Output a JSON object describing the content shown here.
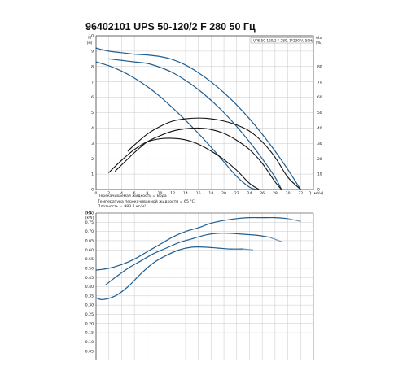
{
  "title": "96402101 UPS 50-120/2 F 280 50 Гц",
  "notes": [
    "Перекачиваемая жидкость = Вода",
    "Температура перекачиваемой жидкости = 65 °C",
    "Плотность = 983.2 кг/м³"
  ],
  "colors": {
    "blue": "#1f5e91",
    "lightblue": "#6f95b8",
    "black": "#111111",
    "grid": "#c8c8c8"
  },
  "chart_data": [
    {
      "type": "line",
      "legend_text": "UPS 50-120/2 F 280, 1*230 V, 50Hz",
      "xlabel": "Q [м³/ч]",
      "ylabel": "H",
      "ylabel_unit": "[м]",
      "y2label": "eta",
      "y2label_unit": "[%]",
      "xlim": [
        0,
        34
      ],
      "ylim": [
        0,
        10
      ],
      "y2lim": [
        0,
        100
      ],
      "x_ticks": [
        0,
        2,
        4,
        6,
        8,
        10,
        12,
        14,
        16,
        18,
        20,
        22,
        24,
        26,
        28,
        30,
        32
      ],
      "y_ticks": [
        0,
        1,
        2,
        3,
        4,
        5,
        6,
        7,
        8,
        9,
        10
      ],
      "y2_ticks": [
        0,
        10,
        20,
        30,
        40,
        50,
        60,
        70,
        80
      ],
      "grid": true,
      "series": [
        {
          "group": "head",
          "color": "blue",
          "x": [
            0,
            2,
            4,
            6,
            8,
            10,
            12,
            14,
            16,
            18,
            20,
            22,
            24,
            26,
            28,
            30,
            32
          ],
          "y": [
            9.2,
            9.0,
            8.9,
            8.8,
            8.75,
            8.65,
            8.45,
            8.1,
            7.6,
            7.0,
            6.3,
            5.5,
            4.6,
            3.6,
            2.5,
            1.3,
            0.0
          ]
        },
        {
          "group": "head",
          "color": "blue",
          "x": [
            2,
            4,
            6,
            8,
            10,
            12,
            14,
            16,
            18,
            20,
            22,
            24,
            26,
            28,
            29
          ],
          "y": [
            8.5,
            8.4,
            8.3,
            8.2,
            7.95,
            7.6,
            7.1,
            6.5,
            5.8,
            5.0,
            4.1,
            3.1,
            2.0,
            0.8,
            0.0
          ]
        },
        {
          "group": "head",
          "color": "blue",
          "x": [
            0,
            2,
            4,
            6,
            8,
            10,
            12,
            14,
            16,
            18,
            20,
            22,
            24,
            25.2
          ],
          "y": [
            8.3,
            8.05,
            7.7,
            7.25,
            6.7,
            6.05,
            5.3,
            4.5,
            3.65,
            2.75,
            1.8,
            0.85,
            0.15,
            0.0
          ]
        },
        {
          "group": "eta",
          "color": "black",
          "x": [
            5,
            6,
            8,
            10,
            12,
            14,
            16,
            18,
            20,
            22,
            24,
            26,
            28,
            30,
            32
          ],
          "y": [
            25,
            29,
            36,
            41,
            44.5,
            46,
            46.5,
            46,
            44.5,
            42,
            38,
            31,
            21,
            8,
            0
          ]
        },
        {
          "group": "eta",
          "color": "black",
          "x": [
            3,
            4,
            6,
            8,
            10,
            12,
            14,
            16,
            18,
            20,
            22,
            24,
            26,
            28,
            29
          ],
          "y": [
            12,
            16,
            24,
            31,
            35,
            38,
            39.5,
            40,
            39,
            36.5,
            32,
            26,
            17,
            5,
            0
          ]
        },
        {
          "group": "eta",
          "color": "black",
          "x": [
            2,
            4,
            6,
            8,
            10,
            12,
            14,
            16,
            18,
            20,
            22,
            24,
            25.5
          ],
          "y": [
            11,
            19,
            26,
            31,
            33,
            33.3,
            32.3,
            29.5,
            25,
            19.5,
            12.5,
            4,
            0
          ]
        }
      ]
    },
    {
      "type": "line",
      "ylabel": "P1",
      "ylabel_unit": "[kW]",
      "xlim": [
        0,
        34
      ],
      "ylim": [
        0,
        0.8
      ],
      "y_ticks": [
        0.05,
        0.1,
        0.15,
        0.2,
        0.25,
        0.3,
        0.35,
        0.4,
        0.45,
        0.5,
        0.55,
        0.6,
        0.65,
        0.7,
        0.75,
        0.8
      ],
      "grid": true,
      "series": [
        {
          "color": "blue",
          "x": [
            0,
            2,
            4,
            6,
            8,
            10,
            12,
            14,
            16,
            18,
            20,
            22,
            24,
            26,
            28,
            30
          ],
          "y": [
            0.49,
            0.5,
            0.52,
            0.55,
            0.59,
            0.63,
            0.67,
            0.7,
            0.72,
            0.745,
            0.76,
            0.77,
            0.775,
            0.775,
            0.775,
            0.77
          ]
        },
        {
          "color": "lightblue",
          "x": [
            30,
            32
          ],
          "y": [
            0.77,
            0.755
          ]
        },
        {
          "color": "blue",
          "x": [
            1.5,
            3,
            5,
            7,
            9,
            11,
            13,
            15,
            17,
            19,
            21,
            23,
            25,
            27
          ],
          "y": [
            0.41,
            0.45,
            0.5,
            0.54,
            0.58,
            0.61,
            0.64,
            0.66,
            0.68,
            0.69,
            0.69,
            0.685,
            0.68,
            0.67
          ]
        },
        {
          "color": "lightblue",
          "x": [
            27,
            29
          ],
          "y": [
            0.67,
            0.645
          ]
        },
        {
          "color": "blue",
          "x": [
            0,
            1,
            3,
            5,
            7,
            9,
            11,
            13,
            15,
            17,
            19,
            21,
            23
          ],
          "y": [
            0.34,
            0.33,
            0.35,
            0.4,
            0.47,
            0.53,
            0.57,
            0.6,
            0.615,
            0.615,
            0.61,
            0.605,
            0.605
          ]
        },
        {
          "color": "lightblue",
          "x": [
            23,
            24.5
          ],
          "y": [
            0.605,
            0.6
          ]
        }
      ]
    }
  ]
}
